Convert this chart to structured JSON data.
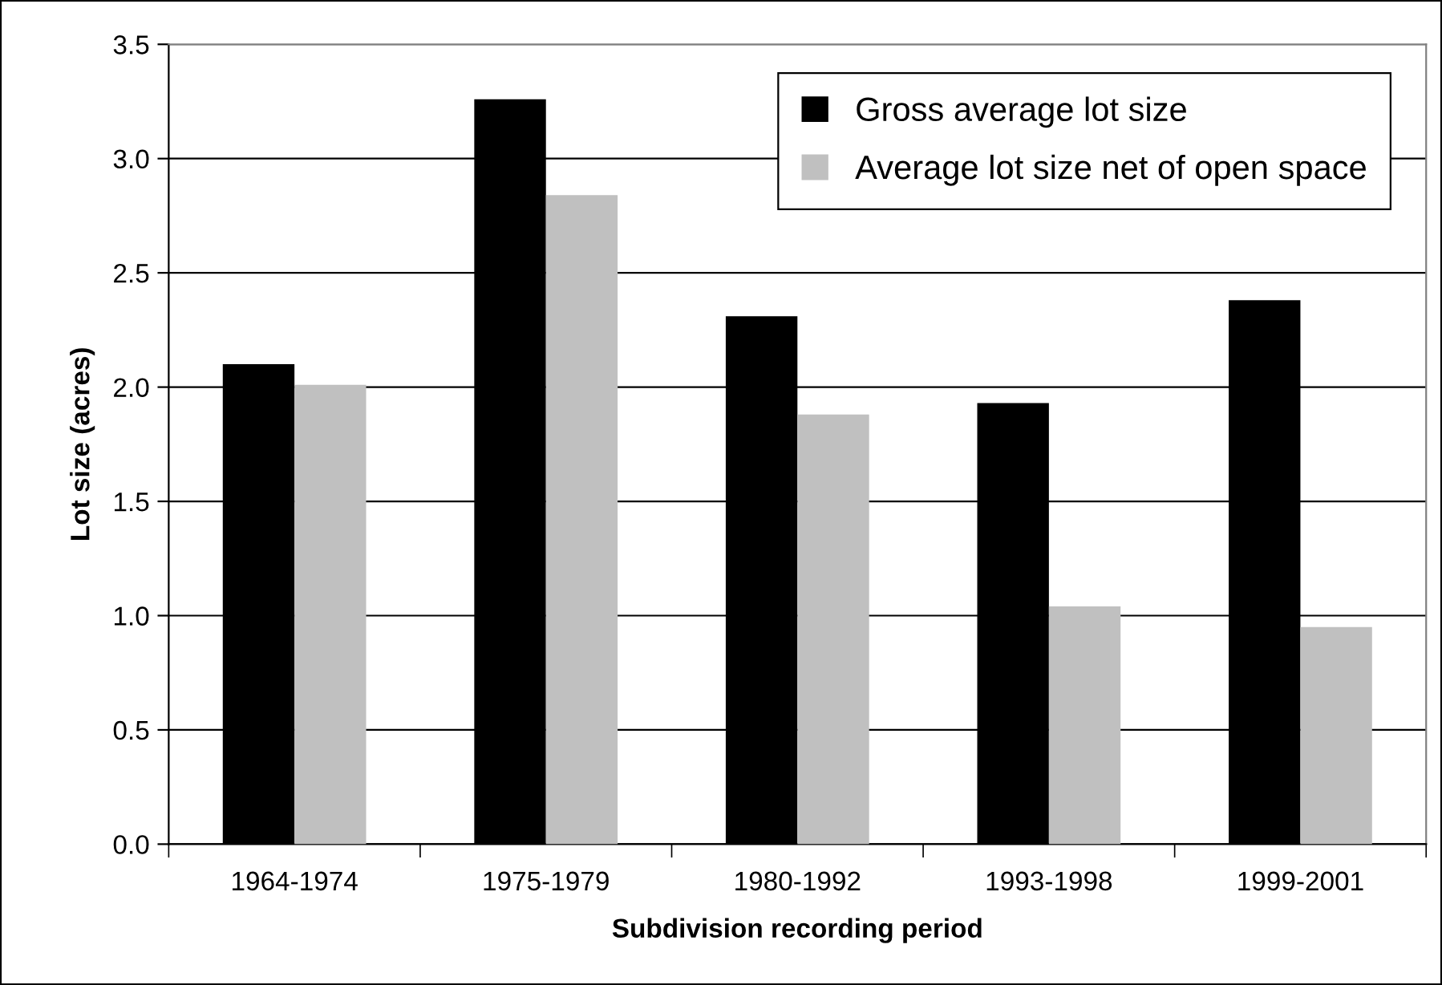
{
  "chart_data": {
    "type": "bar",
    "xlabel": "Subdivision recording period",
    "ylabel": "Lot size (acres)",
    "categories": [
      "1964-1974",
      "1975-1979",
      "1980-1992",
      "1993-1998",
      "1999-2001"
    ],
    "series": [
      {
        "name": "Gross average lot size",
        "color": "#000000",
        "values": [
          2.1,
          3.26,
          2.31,
          1.93,
          2.38
        ]
      },
      {
        "name": "Average lot size net of open space",
        "color": "#c0c0c0",
        "values": [
          2.01,
          2.84,
          1.88,
          1.04,
          0.95
        ]
      }
    ],
    "ylim": [
      0,
      3.5
    ],
    "yticks": [
      {
        "value": 0,
        "label": "0.0"
      },
      {
        "value": 0.5,
        "label": "0.5"
      },
      {
        "value": 1,
        "label": "1.0"
      },
      {
        "value": 1.5,
        "label": "1.5"
      },
      {
        "value": 2,
        "label": "2.0"
      },
      {
        "value": 2.5,
        "label": "2.5"
      },
      {
        "value": 3,
        "label": "3.0"
      },
      {
        "value": 3.5,
        "label": "3.5"
      }
    ],
    "grid": "y",
    "legend": "top right"
  }
}
